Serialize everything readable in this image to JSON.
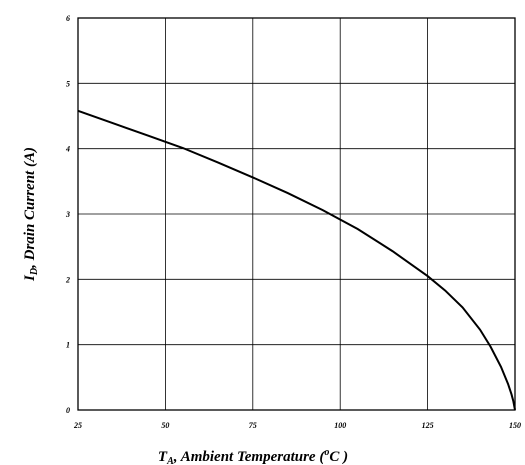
{
  "chart_data": {
    "type": "line",
    "title": "",
    "xlabel": {
      "symbol": "T",
      "subscript": "A",
      "text": ", Ambient Temperature (",
      "unit_superscript": "o",
      "unit": "C )"
    },
    "ylabel": {
      "symbol": "I",
      "subscript": "D",
      "text": ", Drain Current (A)"
    },
    "xlim": [
      25,
      150
    ],
    "ylim": [
      0,
      6
    ],
    "xticks": [
      25,
      50,
      75,
      100,
      125,
      150
    ],
    "yticks": [
      0,
      1,
      2,
      3,
      4,
      5,
      6
    ],
    "xtick_labels": [
      "25",
      "50",
      "75",
      "100",
      "125",
      "150"
    ],
    "ytick_labels": [
      "0",
      "1",
      "2",
      "3",
      "4",
      "5",
      "6"
    ],
    "grid": true,
    "legend": "none",
    "line_color": "#000000",
    "series": [
      {
        "x": [
          25,
          35,
          45,
          55,
          65,
          75,
          85,
          95,
          105,
          115,
          125,
          130,
          135,
          140,
          143,
          146,
          148,
          149,
          149.5,
          150
        ],
        "y": [
          4.58,
          4.39,
          4.2,
          4.01,
          3.79,
          3.56,
          3.32,
          3.06,
          2.77,
          2.43,
          2.05,
          1.83,
          1.57,
          1.23,
          0.97,
          0.66,
          0.4,
          0.24,
          0.14,
          0.0
        ]
      }
    ]
  }
}
